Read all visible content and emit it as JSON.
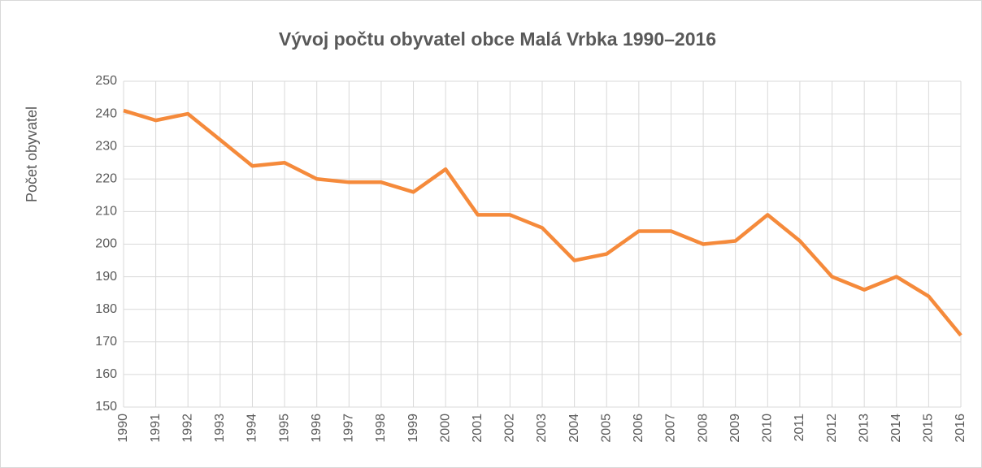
{
  "chart_data": {
    "type": "line",
    "title": "Vývoj počtu obyvatel obce Malá Vrbka 1990–2016",
    "y_label": "Počet obyvatel",
    "x": [
      1990,
      1991,
      1992,
      1993,
      1994,
      1995,
      1996,
      1997,
      1998,
      1999,
      2000,
      2001,
      2002,
      2003,
      2004,
      2005,
      2006,
      2007,
      2008,
      2009,
      2010,
      2011,
      2012,
      2013,
      2014,
      2015,
      2016
    ],
    "series": [
      {
        "name": "Počet obyvatel",
        "color": "#f58a3b",
        "values": [
          241,
          238,
          240,
          232,
          224,
          225,
          220,
          219,
          219,
          216,
          223,
          209,
          209,
          205,
          195,
          197,
          204,
          204,
          200,
          201,
          209,
          201,
          190,
          186,
          190,
          184,
          172
        ]
      }
    ],
    "xlim": [
      1990,
      2016
    ],
    "ylim": [
      150,
      250
    ],
    "yticks": [
      150,
      160,
      170,
      180,
      190,
      200,
      210,
      220,
      230,
      240,
      250
    ],
    "grid": true
  }
}
